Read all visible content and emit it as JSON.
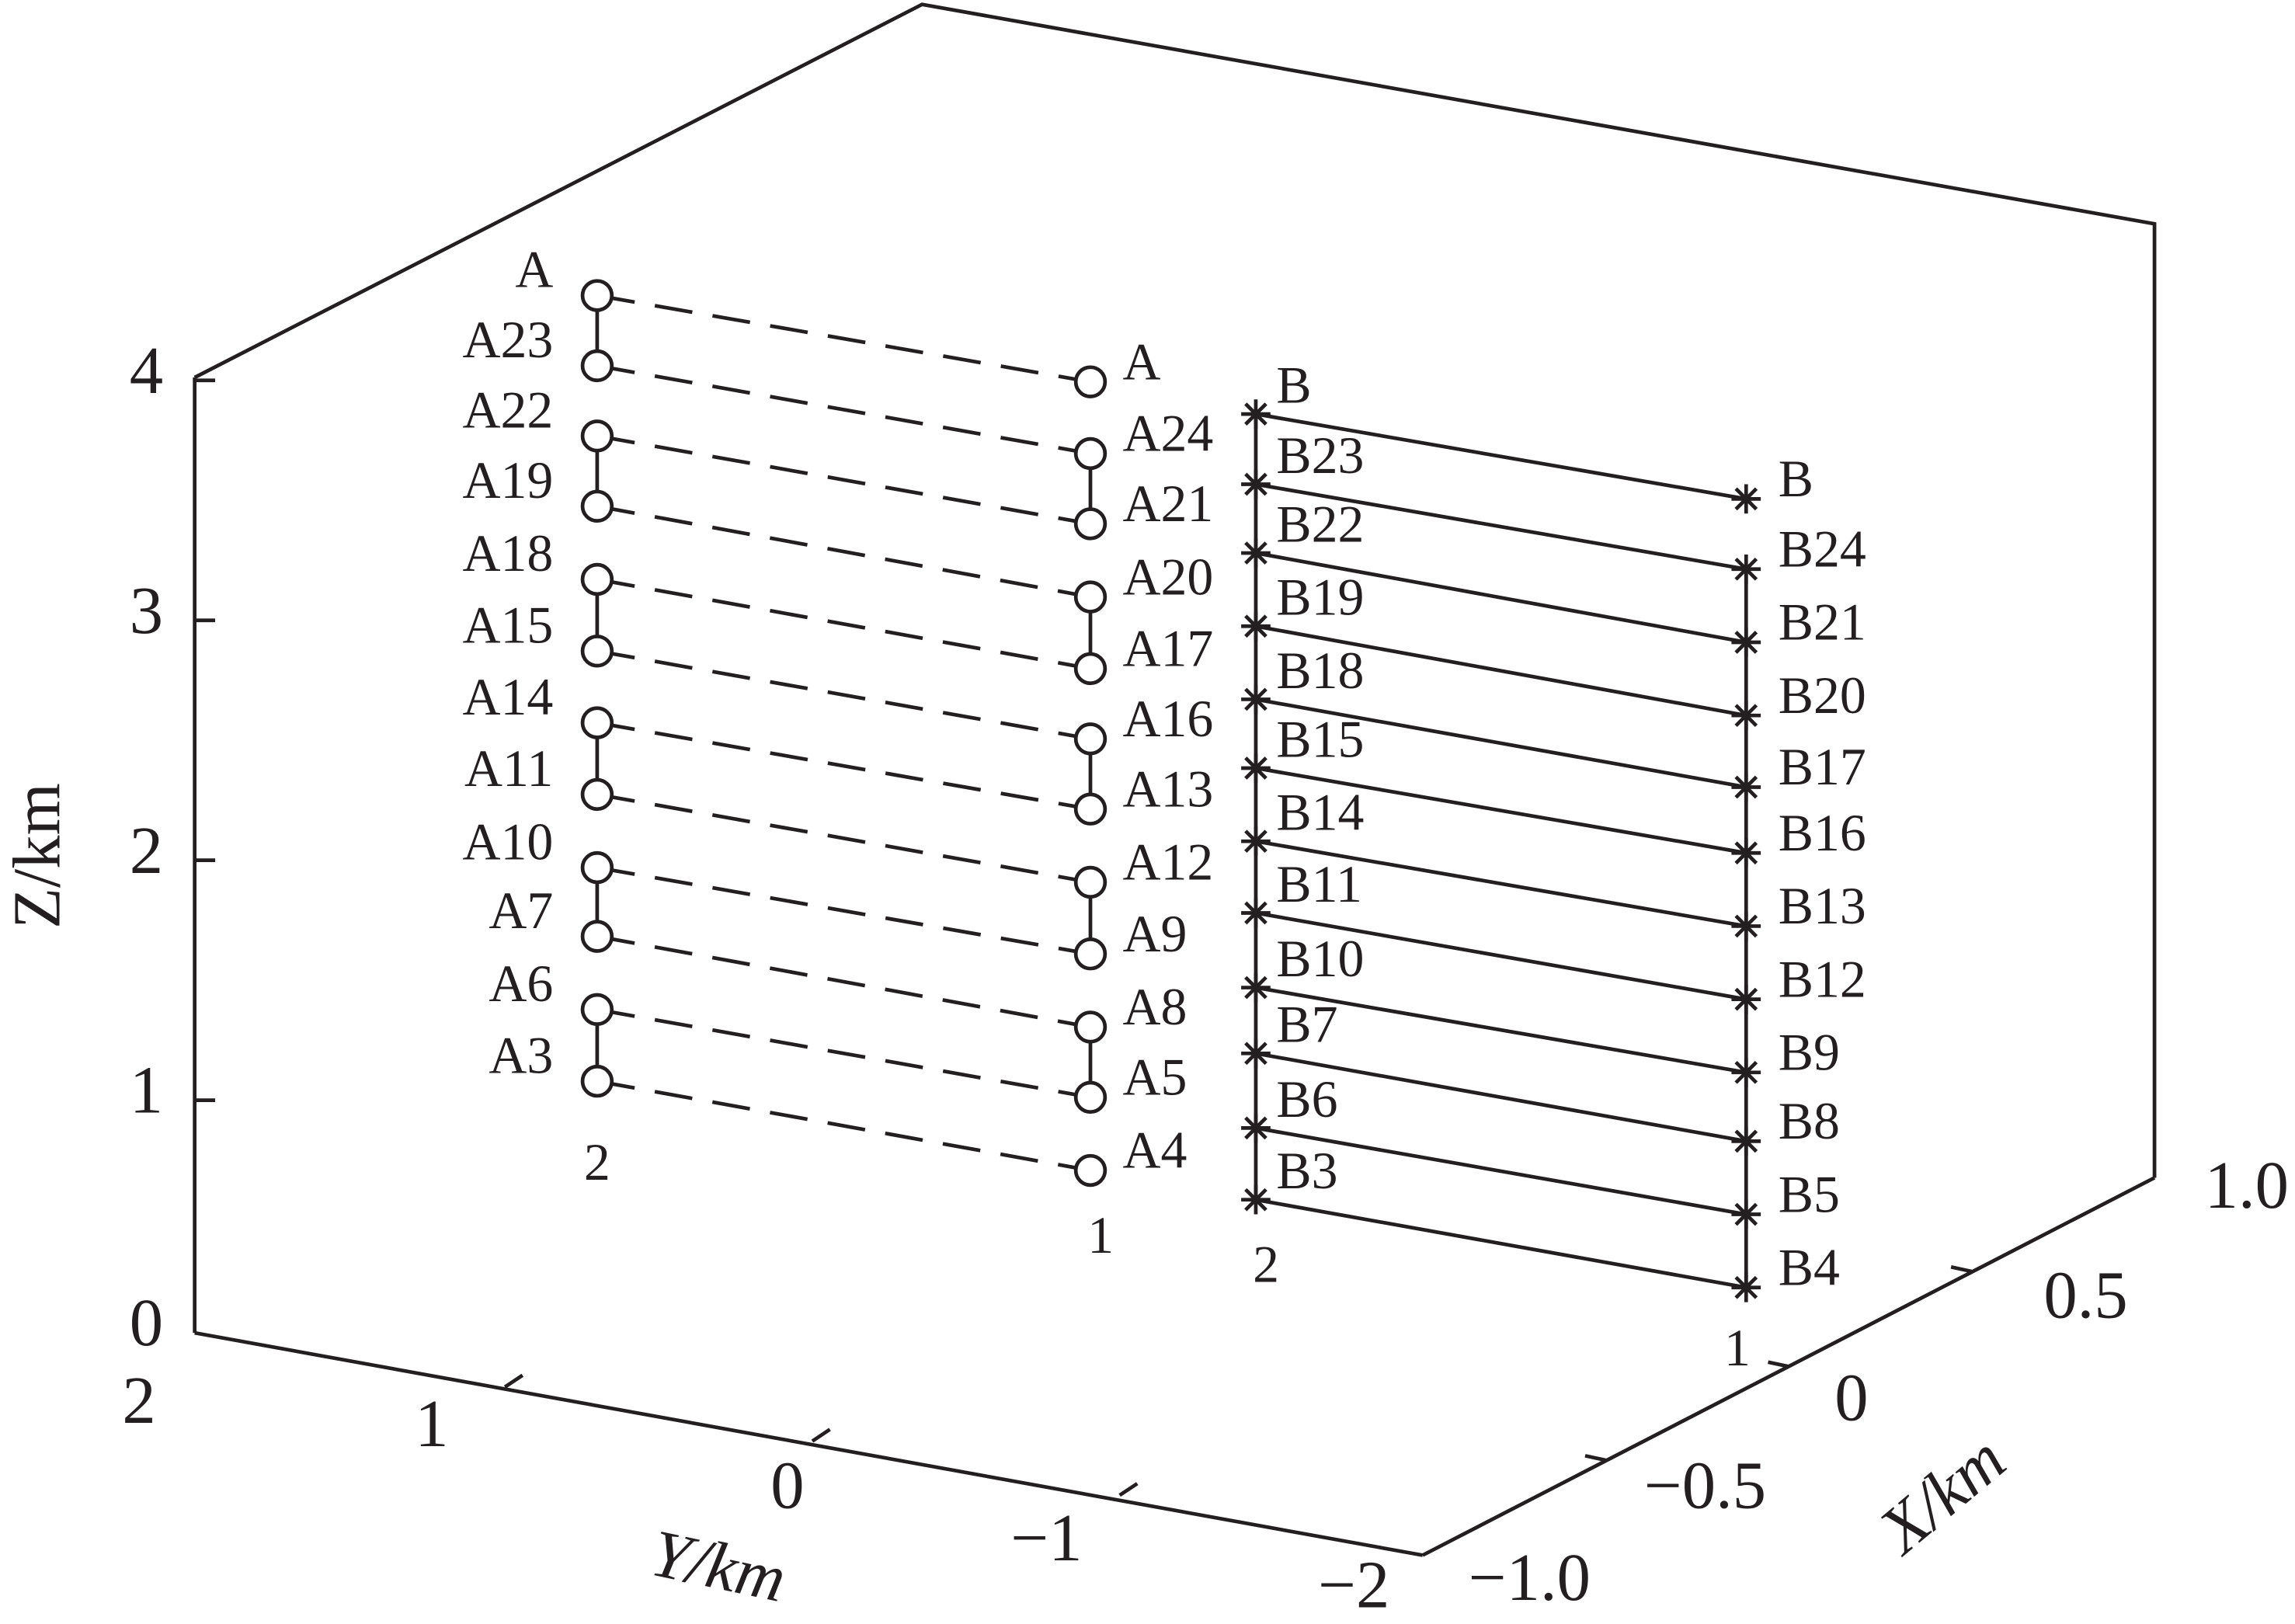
{
  "axes": {
    "z": {
      "label": "Z/km",
      "ticks": [
        "0",
        "1",
        "2",
        "3",
        "4"
      ]
    },
    "y": {
      "label": "Y/km",
      "ticks": [
        "2",
        "1",
        "0",
        "−1",
        "−2"
      ]
    },
    "x": {
      "label": "X/km",
      "ticks": [
        "−1.0",
        "−0.5",
        "0",
        "0.5",
        "1.0"
      ]
    }
  },
  "columns": [
    {
      "name": "2",
      "points": [
        "A",
        "A23",
        "A22",
        "A19",
        "A18",
        "A15",
        "A14",
        "A11",
        "A10",
        "A7",
        "A6",
        "A3"
      ]
    },
    {
      "name": "1",
      "points": [
        "A",
        "A24",
        "A21",
        "A20",
        "A17",
        "A16",
        "A13",
        "A12",
        "A9",
        "A8",
        "A5",
        "A4"
      ]
    },
    {
      "name": "2",
      "points": [
        "B",
        "B23",
        "B22",
        "B19",
        "B18",
        "B15",
        "B14",
        "B11",
        "B10",
        "B7",
        "B6",
        "B3"
      ]
    },
    {
      "name": "1",
      "points": [
        "B",
        "B24",
        "B21",
        "B20",
        "B17",
        "B16",
        "B13",
        "B12",
        "B9",
        "B8",
        "B5",
        "B4"
      ]
    }
  ]
}
